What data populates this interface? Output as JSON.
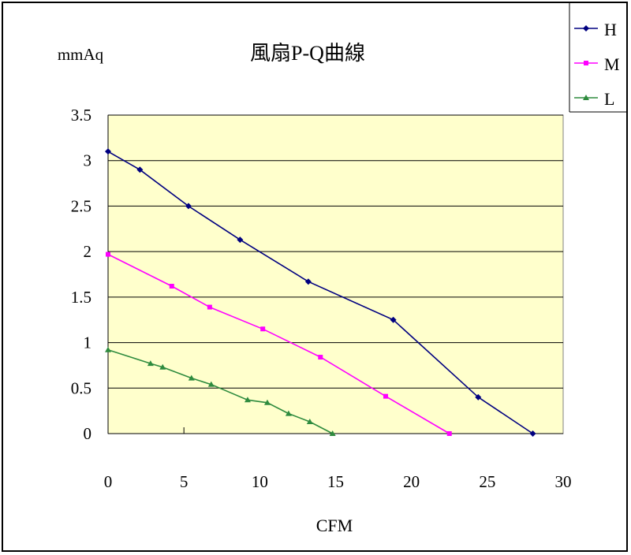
{
  "chart_data": {
    "type": "line",
    "title": "風扇P-Q曲線",
    "ylabel": "mmAq",
    "xlabel": "CFM",
    "xlim": [
      0,
      30
    ],
    "ylim": [
      0,
      3.5
    ],
    "x_ticks": [
      "0",
      "5",
      "10",
      "15",
      "20",
      "25",
      "30"
    ],
    "y_ticks": [
      "0",
      "0.5",
      "1",
      "1.5",
      "2",
      "2.5",
      "3",
      "3.5"
    ],
    "grid": "horizontal",
    "legend_position": "top-right",
    "plot_background": "#ffffcc",
    "series": [
      {
        "name": "H",
        "color": "#000080",
        "marker": "diamond",
        "x": [
          0,
          2.1,
          5.3,
          8.7,
          13.2,
          18.8,
          24.4,
          28.0
        ],
        "y": [
          3.1,
          2.9,
          2.5,
          2.13,
          1.67,
          1.25,
          0.4,
          0.0
        ]
      },
      {
        "name": "M",
        "color": "#ff00ff",
        "marker": "square",
        "x": [
          0,
          4.2,
          6.7,
          10.2,
          14.0,
          18.3,
          22.5
        ],
        "y": [
          1.97,
          1.62,
          1.39,
          1.15,
          0.84,
          0.41,
          0.0
        ]
      },
      {
        "name": "L",
        "color": "#2e8b3e",
        "marker": "triangle",
        "x": [
          0,
          2.8,
          3.6,
          5.5,
          6.8,
          9.2,
          10.5,
          11.9,
          13.3,
          14.8
        ],
        "y": [
          0.92,
          0.77,
          0.73,
          0.61,
          0.54,
          0.37,
          0.34,
          0.22,
          0.13,
          0.0
        ]
      }
    ]
  }
}
